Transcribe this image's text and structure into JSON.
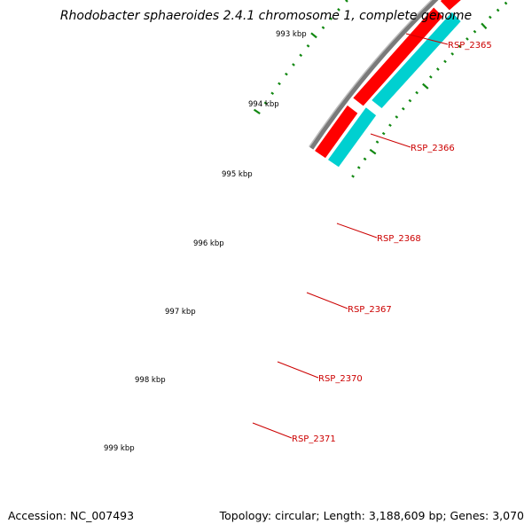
{
  "title": "Rhodobacter sphaeroides 2.4.1 chromosome 1, complete genome",
  "footer": {
    "accession": "Accession: NC_007493",
    "summary": "Topology: circular; Length: 3,188,609 bp; Genes: 3,070"
  },
  "scale": {
    "ticks": [
      "993 kbp",
      "994 kbp",
      "995 kbp",
      "996 kbp",
      "997 kbp",
      "998 kbp",
      "999 kbp"
    ]
  },
  "genes": [
    "RSP_2365",
    "RSP_2366",
    "RSP_2368",
    "RSP_2367",
    "RSP_2370",
    "RSP_2371"
  ],
  "colors": {
    "backbone": "#7a7a7a",
    "forward_cds": "#ff0000",
    "reverse_cds": "#00d0d0",
    "other_feature": "#14148c",
    "ticks": "#118811",
    "gene_label": "#cc0000"
  }
}
